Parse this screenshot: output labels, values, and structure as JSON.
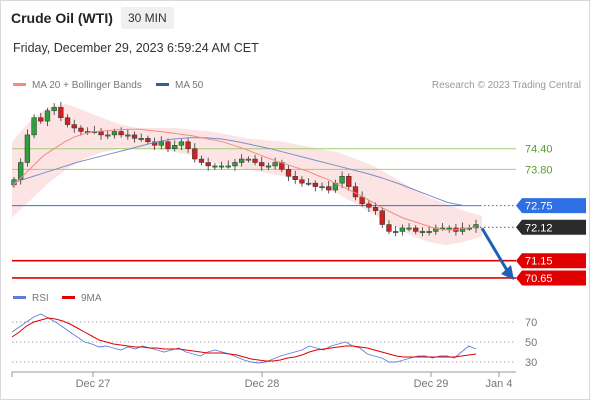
{
  "header": {
    "title": "Crude Oil (WTI)",
    "timeframe": "30 MIN",
    "datetime": "Friday, December 29, 2023 6:59:24 AM CET"
  },
  "legend": {
    "ma20": {
      "label": "MA 20 + Bollinger Bands",
      "color": "#f28b82"
    },
    "ma50": {
      "label": "MA 50",
      "color": "#335c99"
    },
    "credit": "Research © 2023 Trading Central"
  },
  "rsi_legend": {
    "rsi": {
      "label": "RSI",
      "color": "#5b7fd6"
    },
    "ma9": {
      "label": "9MA",
      "color": "#e00000"
    }
  },
  "colors": {
    "up": "#2e9e3e",
    "down": "#cc2222",
    "resistance": "#9fcf72",
    "pivot": "#2f6fe6",
    "support": "#e00000",
    "current": "#2b2b2b",
    "arrow": "#1f5fb5"
  },
  "chart_data": [
    {
      "type": "candlestick",
      "title": "Crude Oil (WTI)",
      "timeframe": "30 MIN",
      "ylim": [
        70.3,
        75.9
      ],
      "x_ticks": [
        "Dec 27",
        "Dec 28",
        "Dec 29",
        "Jan 4"
      ],
      "levels": [
        {
          "value": 74.4,
          "label": "74.40",
          "kind": "resistance"
        },
        {
          "value": 73.8,
          "label": "73.80",
          "kind": "resistance"
        },
        {
          "value": 72.75,
          "label": "72.75",
          "kind": "pivot"
        },
        {
          "value": 72.12,
          "label": "72.12",
          "kind": "current"
        },
        {
          "value": 71.15,
          "label": "71.15",
          "kind": "support"
        },
        {
          "value": 70.65,
          "label": "70.65",
          "kind": "support"
        }
      ],
      "close_path": [
        73.5,
        74.0,
        74.8,
        75.3,
        75.2,
        75.5,
        75.6,
        75.3,
        75.1,
        75.0,
        74.9,
        74.9,
        74.9,
        74.8,
        74.8,
        74.9,
        74.8,
        74.8,
        74.7,
        74.7,
        74.6,
        74.5,
        74.6,
        74.4,
        74.5,
        74.6,
        74.4,
        74.1,
        74.0,
        73.9,
        73.9,
        73.9,
        73.9,
        74.0,
        74.1,
        74.1,
        74.0,
        73.9,
        73.9,
        74.0,
        73.8,
        73.6,
        73.5,
        73.4,
        73.4,
        73.3,
        73.3,
        73.2,
        73.4,
        73.6,
        73.3,
        73.0,
        72.8,
        72.7,
        72.6,
        72.2,
        72.0,
        72.0,
        72.1,
        72.1,
        72.0,
        72.0,
        72.0,
        72.1,
        72.1,
        72.1,
        72.0,
        72.1,
        72.1,
        72.2
      ],
      "ma20": [
        73.3,
        73.6,
        73.9,
        74.2,
        74.4,
        74.6,
        74.75,
        74.85,
        74.9,
        74.92,
        74.95,
        74.96,
        74.97,
        74.93,
        74.9,
        74.86,
        74.82,
        74.78,
        74.72,
        74.66,
        74.6,
        74.5,
        74.4,
        74.28,
        74.16,
        74.05,
        73.95,
        73.85,
        73.75,
        73.62,
        73.5,
        73.35,
        73.2,
        73.05,
        72.88,
        72.7,
        72.55,
        72.4,
        72.3,
        72.2,
        72.1,
        72.05,
        72.05,
        72.1,
        72.12
      ],
      "ma50": [
        73.4,
        73.55,
        73.7,
        73.85,
        74.0,
        74.12,
        74.24,
        74.36,
        74.48,
        74.6,
        74.68,
        74.72,
        74.72,
        74.68,
        74.6,
        74.5,
        74.4,
        74.28,
        74.16,
        74.04,
        73.92,
        73.8,
        73.68,
        73.54,
        73.38,
        73.2,
        73.02,
        72.84,
        72.75,
        72.75
      ],
      "bb_upper": [
        74.6,
        75.2,
        75.6,
        75.7,
        75.5,
        75.3,
        75.1,
        75.0,
        75.0,
        75.0,
        74.95,
        74.9,
        74.8,
        74.7,
        74.65,
        74.6,
        74.5,
        74.4,
        74.3,
        74.1,
        73.9,
        73.6,
        73.3,
        73.0,
        72.8,
        72.6,
        72.45
      ],
      "bb_lower": [
        72.4,
        72.9,
        73.4,
        73.8,
        74.1,
        74.3,
        74.4,
        74.4,
        74.4,
        74.3,
        74.2,
        74.0,
        73.9,
        73.8,
        73.7,
        73.6,
        73.5,
        73.3,
        73.1,
        72.8,
        72.5,
        72.2,
        71.9,
        71.7,
        71.6,
        71.7,
        71.85
      ]
    },
    {
      "type": "line",
      "title": "RSI",
      "ylim": [
        22,
        85
      ],
      "y_ticks": [
        70,
        50,
        30
      ],
      "series": [
        {
          "name": "RSI",
          "values": [
            60,
            65,
            70,
            75,
            78,
            74,
            70,
            65,
            60,
            55,
            50,
            48,
            45,
            46,
            44,
            42,
            45,
            43,
            46,
            44,
            42,
            40,
            42,
            44,
            40,
            38,
            36,
            40,
            42,
            40,
            38,
            35,
            32,
            30,
            29,
            30,
            33,
            36,
            38,
            40,
            42,
            46,
            44,
            42,
            46,
            48,
            50,
            46,
            44,
            38,
            36,
            34,
            30,
            30,
            32,
            34,
            36,
            36,
            34,
            36,
            36,
            34,
            40,
            46,
            43
          ]
        },
        {
          "name": "9MA",
          "values": [
            55,
            60,
            66,
            70,
            72,
            74,
            73,
            71,
            68,
            64,
            60,
            56,
            52,
            50,
            48,
            47,
            46,
            45,
            45,
            44,
            44,
            43,
            43,
            43,
            42,
            41,
            40,
            39,
            39,
            39,
            38,
            37,
            35,
            33,
            32,
            31,
            31,
            32,
            34,
            35,
            37,
            40,
            42,
            43,
            44,
            45,
            46,
            46,
            45,
            44,
            42,
            40,
            38,
            36,
            35,
            35,
            35,
            35,
            35,
            35,
            35,
            35,
            36,
            37,
            38
          ]
        }
      ]
    }
  ]
}
